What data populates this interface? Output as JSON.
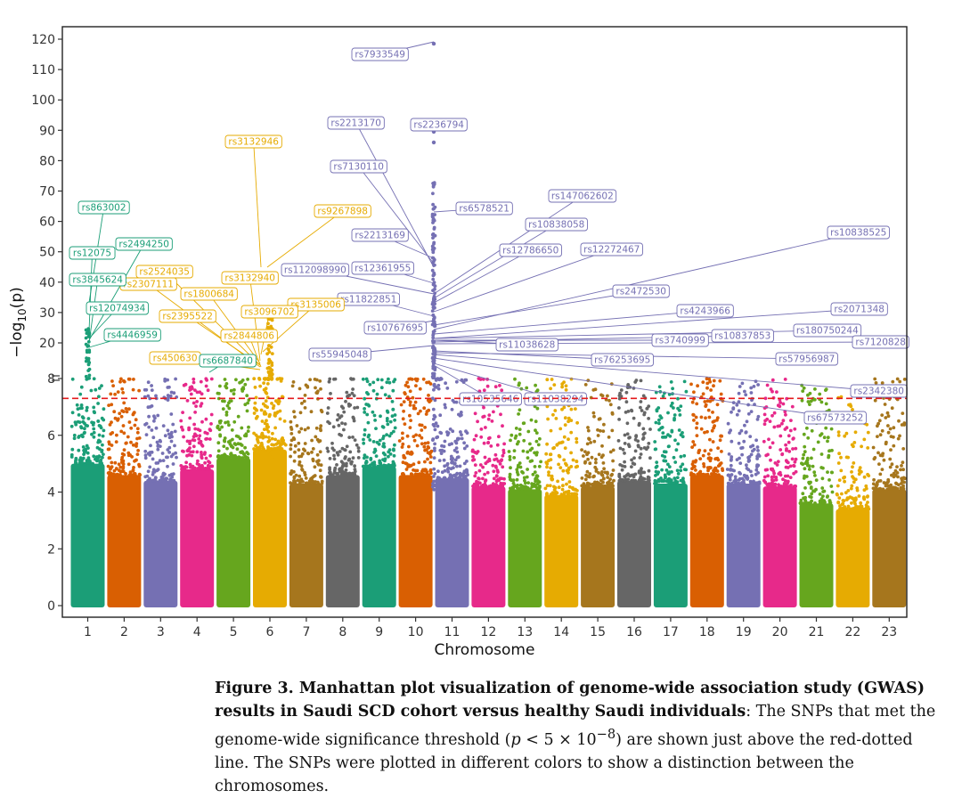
{
  "chart_data": {
    "type": "scatter",
    "subtype": "manhattan",
    "xlabel": "Chromosome",
    "ylabel_base": "−log",
    "ylabel_sub": "10",
    "ylabel_tail": "(p)",
    "x_categories": [
      "1",
      "2",
      "3",
      "4",
      "5",
      "6",
      "7",
      "8",
      "9",
      "10",
      "11",
      "12",
      "13",
      "14",
      "15",
      "16",
      "17",
      "18",
      "19",
      "20",
      "21",
      "22",
      "23"
    ],
    "y_axis_break_at": 8,
    "y_ticks_lower": [
      0,
      2,
      4,
      6,
      8
    ],
    "y_ticks_upper": [
      20,
      30,
      40,
      50,
      60,
      70,
      80,
      90,
      100,
      110,
      120
    ],
    "upper_range": [
      15,
      122
    ],
    "lower_range": [
      0,
      8.3
    ],
    "significance_threshold": 7.3,
    "threshold_line": {
      "style": "dashed",
      "color": "#e41a1c"
    },
    "grid": false,
    "chromosome_colors": [
      "#1b9e77",
      "#d95f02",
      "#7570b3",
      "#e7298a",
      "#66a61e",
      "#e6ab02",
      "#a6761d",
      "#666666",
      "#1b9e77",
      "#d95f02",
      "#7570b3",
      "#e7298a",
      "#66a61e",
      "#e6ab02",
      "#a6761d",
      "#666666",
      "#1b9e77",
      "#d95f02",
      "#7570b3",
      "#e7298a",
      "#66a61e",
      "#e6ab02",
      "#a6761d"
    ],
    "annotations": [
      {
        "label": "rs7933549",
        "chr": 11
      },
      {
        "label": "rs2213170",
        "chr": 11
      },
      {
        "label": "rs2236794",
        "chr": 11
      },
      {
        "label": "rs7130110",
        "chr": 11
      },
      {
        "label": "rs6578521",
        "chr": 11
      },
      {
        "label": "rs147062602",
        "chr": 11
      },
      {
        "label": "rs10838058",
        "chr": 11
      },
      {
        "label": "rs2213169",
        "chr": 11
      },
      {
        "label": "rs12786650",
        "chr": 11
      },
      {
        "label": "rs12272467",
        "chr": 11
      },
      {
        "label": "rs10838525",
        "chr": 11
      },
      {
        "label": "rs112098990",
        "chr": 11
      },
      {
        "label": "rs12361955",
        "chr": 11
      },
      {
        "label": "rs2472530",
        "chr": 11
      },
      {
        "label": "rs11822851",
        "chr": 11
      },
      {
        "label": "rs4243966",
        "chr": 11
      },
      {
        "label": "rs2071348",
        "chr": 11
      },
      {
        "label": "rs10767695",
        "chr": 11
      },
      {
        "label": "rs180750244",
        "chr": 11
      },
      {
        "label": "rs3740999",
        "chr": 11
      },
      {
        "label": "rs10837853",
        "chr": 11
      },
      {
        "label": "rs7120828",
        "chr": 11
      },
      {
        "label": "rs11038628",
        "chr": 11
      },
      {
        "label": "rs55945048",
        "chr": 11
      },
      {
        "label": "rs76253695",
        "chr": 11
      },
      {
        "label": "rs57956987",
        "chr": 11
      },
      {
        "label": "rs2342380",
        "chr": 11
      },
      {
        "label": "rs67573252",
        "chr": 11
      },
      {
        "label": "rs10535646",
        "chr": 11
      },
      {
        "label": "rs11038294",
        "chr": 11
      },
      {
        "label": "rs3132946",
        "chr": 6
      },
      {
        "label": "rs9267898",
        "chr": 6
      },
      {
        "label": "rs2524035",
        "chr": 6
      },
      {
        "label": "rs3132940",
        "chr": 6
      },
      {
        "label": "rs2307111",
        "chr": 6
      },
      {
        "label": "rs1800684",
        "chr": 6
      },
      {
        "label": "rs3135006",
        "chr": 6
      },
      {
        "label": "rs3096702",
        "chr": 6
      },
      {
        "label": "rs2395522",
        "chr": 6
      },
      {
        "label": "rs2844806",
        "chr": 6
      },
      {
        "label": "rs450630",
        "chr": 6
      },
      {
        "label": "rs863002",
        "chr": 1
      },
      {
        "label": "rs12075",
        "chr": 1
      },
      {
        "label": "rs2494250",
        "chr": 1
      },
      {
        "label": "rs3845624",
        "chr": 1
      },
      {
        "label": "rs12074934",
        "chr": 1
      },
      {
        "label": "rs4446959",
        "chr": 1
      },
      {
        "label": "rs6687840",
        "chr": 1
      }
    ]
  },
  "caption": {
    "bold": "Figure 3. Manhattan plot visualization of genome-wide association study (GWAS) results in Saudi SCD cohort versus healthy Saudi individuals",
    "text_1": ": The SNPs that met the genome-wide significance threshold (",
    "p": "p",
    "text_2": " < 5 × 10",
    "exp": "−8",
    "text_3": ") are shown just above the red-dotted line. The SNPs were plotted in different colors to show a distinction between the chromosomes."
  }
}
